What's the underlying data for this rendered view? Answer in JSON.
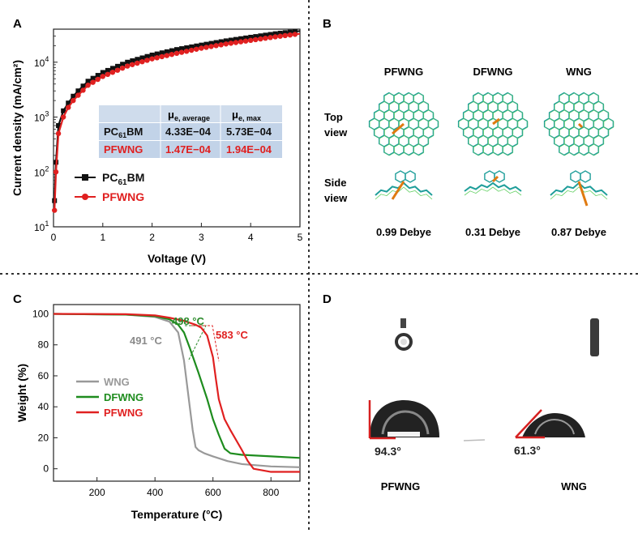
{
  "figure": {
    "panel_labels": [
      "A",
      "B",
      "C",
      "D"
    ]
  },
  "panel_a": {
    "xlabel": "Voltage (V)",
    "ylabel": "Current density (mA/cm²)",
    "x_ticks": [
      "0",
      "1",
      "2",
      "3",
      "4",
      "5"
    ],
    "y_ticks": [
      {
        "base": "10",
        "exp": "1"
      },
      {
        "base": "10",
        "exp": "2"
      },
      {
        "base": "10",
        "exp": "3"
      },
      {
        "base": "10",
        "exp": "4"
      }
    ],
    "table": {
      "headers": [
        {
          "mu": "μ",
          "sub": "e, average"
        },
        {
          "mu": "μ",
          "sub": "e, max"
        }
      ],
      "rows": [
        {
          "name": "PC",
          "name_sub": "61",
          "name_tail": "BM",
          "avg": "4.33E−04",
          "max": "5.73E−04",
          "color": "#111111"
        },
        {
          "name": "PFWNG",
          "name_sub": "",
          "name_tail": "",
          "avg": "1.47E−04",
          "max": "1.94E−04",
          "color": "#e02020"
        }
      ]
    },
    "legend": [
      {
        "name": "PC",
        "sub": "61",
        "tail": "BM",
        "color": "#111111"
      },
      {
        "name": "PFWNG",
        "sub": "",
        "tail": "",
        "color": "#e02020"
      }
    ]
  },
  "panel_b": {
    "columns": [
      "PFWNG",
      "DFWNG",
      "WNG"
    ],
    "row_labels": [
      {
        "line1": "Top",
        "line2": "view"
      },
      {
        "line1": "Side",
        "line2": "view"
      }
    ],
    "dipoles": [
      "0.99 Debye",
      "0.31 Debye",
      "0.87 Debye"
    ]
  },
  "panel_c": {
    "xlabel": "Temperature (°C)",
    "ylabel": "Weight (%)",
    "x_ticks": [
      "200",
      "400",
      "600",
      "800"
    ],
    "y_ticks": [
      "0",
      "20",
      "40",
      "60",
      "80",
      "100"
    ],
    "annotations": [
      {
        "text": "498 °C",
        "color": "#2a8a2a"
      },
      {
        "text": "491 °C",
        "color": "#8a8a8a"
      },
      {
        "text": "583 °C",
        "color": "#e02020"
      }
    ],
    "legend": [
      {
        "name": "WNG",
        "color": "#999999"
      },
      {
        "name": "DFWNG",
        "color": "#1e8c1e"
      },
      {
        "name": "PFWNG",
        "color": "#e02020"
      }
    ]
  },
  "panel_d": {
    "angles": [
      "94.3°",
      "61.3°"
    ],
    "labels": [
      "PFWNG",
      "WNG"
    ]
  },
  "chart_data": [
    {
      "type": "line",
      "xlabel": "Voltage (V)",
      "ylabel": "Current density (mA/cm²)",
      "xlim": [
        0,
        5
      ],
      "ylim": [
        10,
        40000
      ],
      "yscale": "log",
      "series": [
        {
          "name": "PC61BM",
          "color": "#111111",
          "x": [
            0.02,
            0.05,
            0.1,
            0.2,
            0.3,
            0.4,
            0.5,
            0.7,
            1.0,
            1.5,
            2.0,
            2.5,
            3.0,
            3.5,
            4.0,
            4.5,
            5.0
          ],
          "y": [
            30,
            150,
            700,
            1300,
            1800,
            2400,
            3000,
            4500,
            6500,
            10000,
            13500,
            17000,
            20500,
            24500,
            28500,
            33000,
            37000
          ]
        },
        {
          "name": "PFWNG",
          "color": "#e02020",
          "x": [
            0.02,
            0.05,
            0.1,
            0.2,
            0.3,
            0.4,
            0.5,
            0.7,
            1.0,
            1.5,
            2.0,
            2.5,
            3.0,
            3.5,
            4.0,
            4.5,
            5.0
          ],
          "y": [
            20,
            100,
            500,
            1000,
            1500,
            2000,
            2500,
            3800,
            5500,
            8500,
            11500,
            14500,
            18000,
            21500,
            25000,
            29000,
            33000
          ]
        }
      ]
    },
    {
      "type": "line",
      "xlabel": "Temperature (°C)",
      "ylabel": "Weight (%)",
      "xlim": [
        50,
        900
      ],
      "ylim": [
        -8,
        106
      ],
      "series": [
        {
          "name": "WNG",
          "color": "#999999",
          "x": [
            50,
            300,
            400,
            450,
            480,
            500,
            520,
            530,
            540,
            550,
            570,
            600,
            650,
            700,
            800,
            900
          ],
          "y": [
            100,
            99.5,
            98,
            95,
            88,
            70,
            40,
            25,
            14,
            12,
            10,
            8,
            5,
            3,
            1.5,
            1
          ]
        },
        {
          "name": "DFWNG",
          "color": "#1e8c1e",
          "x": [
            50,
            300,
            400,
            450,
            480,
            500,
            520,
            550,
            580,
            600,
            620,
            640,
            660,
            700,
            800,
            900
          ],
          "y": [
            100,
            99.5,
            98.5,
            96.5,
            93,
            88,
            78,
            62,
            45,
            32,
            22,
            13,
            10,
            9,
            8,
            7
          ]
        },
        {
          "name": "PFWNG",
          "color": "#e02020",
          "x": [
            50,
            300,
            400,
            450,
            500,
            540,
            560,
            580,
            600,
            610,
            620,
            640,
            660,
            700,
            720,
            740,
            800,
            900
          ],
          "y": [
            100,
            99.8,
            99,
            97.5,
            95.5,
            93,
            91,
            86,
            72,
            58,
            45,
            32,
            25,
            12,
            5,
            0,
            -2,
            -2
          ]
        }
      ]
    }
  ]
}
